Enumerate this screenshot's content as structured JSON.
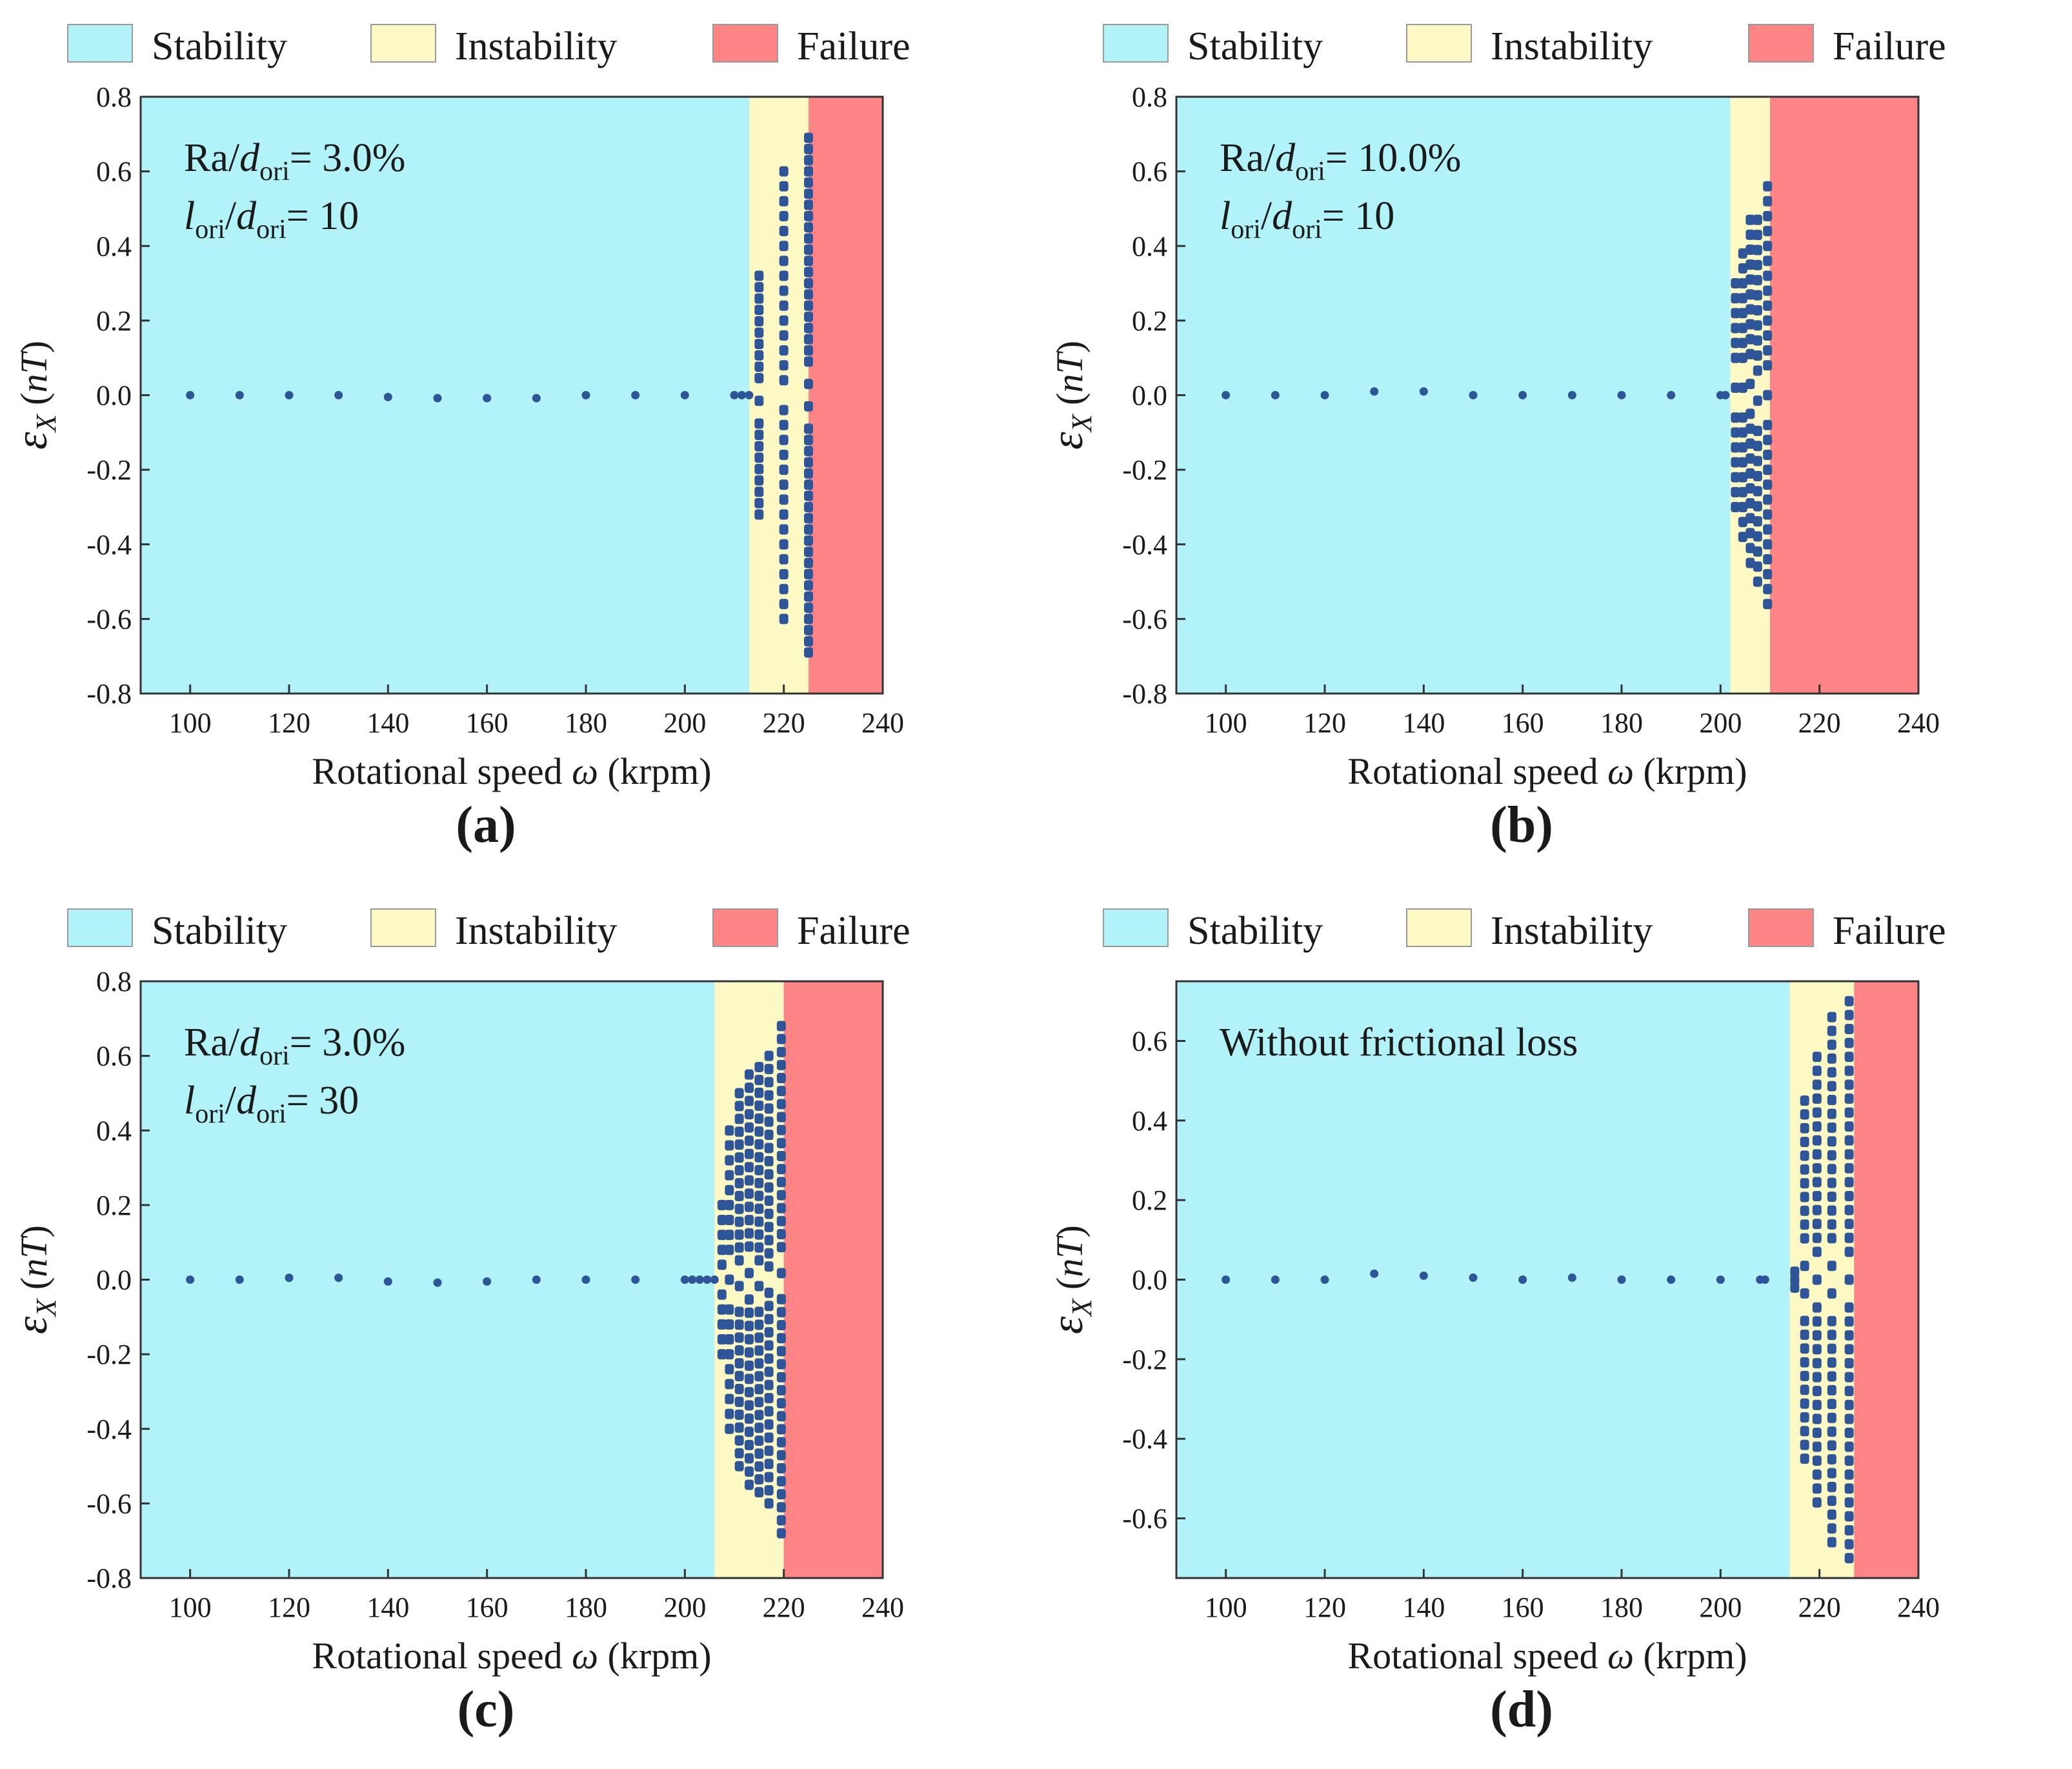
{
  "figure": {
    "legend": [
      {
        "label": "Stability",
        "color": "#b1f3f9"
      },
      {
        "label": "Instability",
        "color": "#fcf9c4"
      },
      {
        "label": "Failure",
        "color": "#fd8585"
      }
    ],
    "x_title": "Rotational speed ω (krpm)",
    "y_title": "εX (nT)",
    "point_color": "#2e5597"
  },
  "chart_data": [
    {
      "id": "a",
      "type": "scatter",
      "panel_label": "(a)",
      "annotation": {
        "ra_prefix": "Ra/",
        "d": "d",
        "sub": "ori",
        "ra_value": "= 3.0%",
        "l": "l",
        "slash": "/",
        "l_value": "= 10"
      },
      "xlim": [
        90,
        240
      ],
      "ylim": [
        -0.8,
        0.8
      ],
      "xticks": [
        "100",
        "120",
        "140",
        "160",
        "180",
        "200",
        "220",
        "240"
      ],
      "yticks": [
        "0.8",
        "0.6",
        "0.4",
        "0.2",
        "0.0",
        "-0.2",
        "-0.4",
        "-0.6",
        "-0.8"
      ],
      "regions": {
        "stability": [
          90,
          213
        ],
        "instability": [
          213,
          225
        ],
        "failure": [
          225,
          240
        ]
      },
      "stable_points": [
        [
          100,
          0.0
        ],
        [
          110,
          0.0
        ],
        [
          120,
          0.0
        ],
        [
          130,
          0.0
        ],
        [
          140,
          -0.005
        ],
        [
          150,
          -0.008
        ],
        [
          160,
          -0.008
        ],
        [
          170,
          -0.008
        ],
        [
          180,
          0.0
        ],
        [
          190,
          0.0
        ],
        [
          200,
          0.0
        ],
        [
          210,
          0.0
        ],
        [
          211.5,
          0.0
        ],
        [
          213,
          0.0
        ]
      ],
      "instability_columns": [
        {
          "x": 215,
          "ymin": -0.32,
          "ymax": 0.32,
          "step": 0.03
        },
        {
          "x": 220,
          "ymin": -0.6,
          "ymax": 0.6,
          "step": 0.04
        },
        {
          "x": 225,
          "ymin": -0.69,
          "ymax": 0.69,
          "step": 0.03
        }
      ]
    },
    {
      "id": "b",
      "type": "scatter",
      "panel_label": "(b)",
      "annotation": {
        "ra_prefix": "Ra/",
        "d": "d",
        "sub": "ori",
        "ra_value": "= 10.0%",
        "l": "l",
        "slash": "/",
        "l_value": "= 10"
      },
      "xlim": [
        90,
        240
      ],
      "ylim": [
        -0.8,
        0.8
      ],
      "xticks": [
        "100",
        "120",
        "140",
        "160",
        "180",
        "200",
        "220",
        "240"
      ],
      "yticks": [
        "0.8",
        "0.6",
        "0.4",
        "0.2",
        "0.0",
        "-0.2",
        "-0.4",
        "-0.6",
        "-0.8"
      ],
      "regions": {
        "stability": [
          90,
          202
        ],
        "instability": [
          202,
          210
        ],
        "failure": [
          210,
          240
        ]
      },
      "stable_points": [
        [
          100,
          0.0
        ],
        [
          110,
          0.0
        ],
        [
          120,
          0.0
        ],
        [
          130,
          0.01
        ],
        [
          140,
          0.01
        ],
        [
          150,
          0.0
        ],
        [
          160,
          0.0
        ],
        [
          170,
          0.0
        ],
        [
          180,
          0.0
        ],
        [
          190,
          0.0
        ],
        [
          200,
          0.0
        ],
        [
          201,
          0.0
        ]
      ],
      "instability_columns": [
        {
          "x": 203,
          "ymin": -0.3,
          "ymax": 0.3,
          "step": 0.04
        },
        {
          "x": 204.5,
          "ymin": -0.38,
          "ymax": 0.38,
          "step": 0.04
        },
        {
          "x": 206,
          "ymin": -0.45,
          "ymax": 0.47,
          "step": 0.04
        },
        {
          "x": 207.5,
          "ymin": -0.5,
          "ymax": 0.47,
          "step": 0.04
        },
        {
          "x": 209.5,
          "ymin": -0.56,
          "ymax": 0.56,
          "step": 0.04
        }
      ]
    },
    {
      "id": "c",
      "type": "scatter",
      "panel_label": "(c)",
      "annotation": {
        "ra_prefix": "Ra/",
        "d": "d",
        "sub": "ori",
        "ra_value": "= 3.0%",
        "l": "l",
        "slash": "/",
        "l_value": "= 30"
      },
      "xlim": [
        90,
        240
      ],
      "ylim": [
        -0.8,
        0.8
      ],
      "xticks": [
        "100",
        "120",
        "140",
        "160",
        "180",
        "200",
        "220",
        "240"
      ],
      "yticks": [
        "0.8",
        "0.6",
        "0.4",
        "0.2",
        "0.0",
        "-0.2",
        "-0.4",
        "-0.6",
        "-0.8"
      ],
      "regions": {
        "stability": [
          90,
          206
        ],
        "instability": [
          206,
          220
        ],
        "failure": [
          220,
          240
        ]
      },
      "stable_points": [
        [
          100,
          0.0
        ],
        [
          110,
          0.0
        ],
        [
          120,
          0.005
        ],
        [
          130,
          0.005
        ],
        [
          140,
          -0.005
        ],
        [
          150,
          -0.008
        ],
        [
          160,
          -0.005
        ],
        [
          170,
          0.0
        ],
        [
          180,
          0.0
        ],
        [
          190,
          0.0
        ],
        [
          200,
          0.0
        ],
        [
          201.5,
          0.0
        ],
        [
          203,
          0.0
        ],
        [
          204.5,
          0.0
        ],
        [
          206,
          0.0
        ]
      ],
      "instability_columns": [
        {
          "x": 207.5,
          "ymin": -0.2,
          "ymax": 0.2,
          "step": 0.04
        },
        {
          "x": 209,
          "ymin": -0.4,
          "ymax": 0.4,
          "step": 0.04
        },
        {
          "x": 211,
          "ymin": -0.5,
          "ymax": 0.5,
          "step": 0.035
        },
        {
          "x": 213,
          "ymin": -0.55,
          "ymax": 0.55,
          "step": 0.035
        },
        {
          "x": 215,
          "ymin": -0.57,
          "ymax": 0.57,
          "step": 0.035
        },
        {
          "x": 217,
          "ymin": -0.6,
          "ymax": 0.6,
          "step": 0.035
        },
        {
          "x": 219.5,
          "ymin": -0.68,
          "ymax": 0.68,
          "step": 0.035
        }
      ]
    },
    {
      "id": "d",
      "type": "scatter",
      "panel_label": "(d)",
      "annotation": {
        "text": "Without frictional loss"
      },
      "xlim": [
        90,
        240
      ],
      "ylim": [
        -0.75,
        0.75
      ],
      "xticks": [
        "100",
        "120",
        "140",
        "160",
        "180",
        "200",
        "220",
        "240"
      ],
      "yticks": [
        "0.6",
        "0.4",
        "0.2",
        "0.0",
        "-0.2",
        "-0.4",
        "-0.6"
      ],
      "regions": {
        "stability": [
          90,
          214
        ],
        "instability": [
          214,
          227
        ],
        "failure": [
          227,
          240
        ]
      },
      "stable_points": [
        [
          100,
          0.0
        ],
        [
          110,
          0.0
        ],
        [
          120,
          0.0
        ],
        [
          130,
          0.015
        ],
        [
          140,
          0.01
        ],
        [
          150,
          0.005
        ],
        [
          160,
          0.0
        ],
        [
          170,
          0.005
        ],
        [
          180,
          0.0
        ],
        [
          190,
          0.0
        ],
        [
          200,
          0.0
        ],
        [
          208,
          0.0
        ],
        [
          209,
          0.0
        ]
      ],
      "instability_columns": [
        {
          "x": 215,
          "ymin": -0.02,
          "ymax": 0.02,
          "step": 0.02
        },
        {
          "x": 217,
          "ymin": -0.45,
          "ymax": 0.45,
          "step": 0.035
        },
        {
          "x": 219.5,
          "ymin": -0.56,
          "ymax": 0.56,
          "step": 0.035
        },
        {
          "x": 222.5,
          "ymin": -0.66,
          "ymax": 0.66,
          "step": 0.035
        },
        {
          "x": 226,
          "ymin": -0.7,
          "ymax": 0.7,
          "step": 0.035
        }
      ]
    }
  ]
}
